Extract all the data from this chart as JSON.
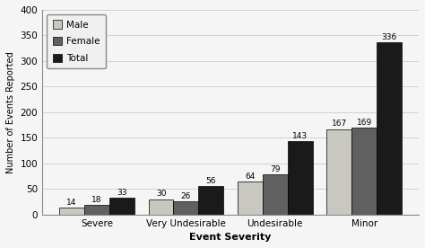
{
  "categories": [
    "Severe",
    "Very Undesirable",
    "Undesirable",
    "Minor"
  ],
  "male": [
    14,
    30,
    64,
    167
  ],
  "female": [
    18,
    26,
    79,
    169
  ],
  "total": [
    33,
    56,
    143,
    336
  ],
  "bar_colors": {
    "Male": "#c8c8c0",
    "Female": "#606060",
    "Total": "#1a1a1a"
  },
  "bar_width": 0.28,
  "xlabel": "Event Severity",
  "ylabel": "Number of Events Reported",
  "ylim": [
    0,
    400
  ],
  "yticks": [
    0,
    50,
    100,
    150,
    200,
    250,
    300,
    350,
    400
  ],
  "legend_labels": [
    "Male",
    "Female",
    "Total"
  ],
  "background_color": "#f5f5f5",
  "grid_color": "#cccccc"
}
